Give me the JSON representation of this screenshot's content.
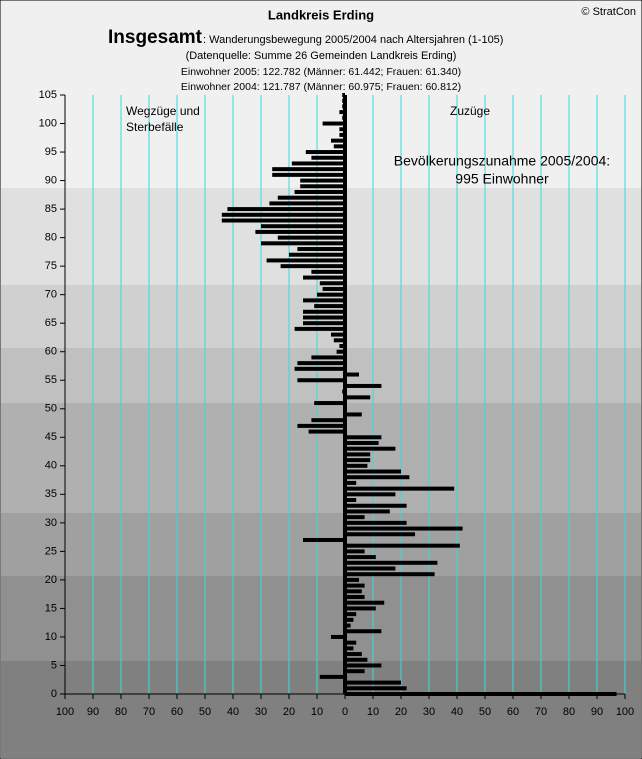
{
  "chart_data": {
    "type": "hbar",
    "title": "Landkreis Erding",
    "copyright": "© StratCon",
    "heading": "Insgesamt",
    "subtitle": ": Wanderungsbewegung 2005/2004 nach Altersjahren (1-105)",
    "source": "(Datenquelle: Summe 26 Gemeinden Landkreis Erding)",
    "info": [
      "Einwohner 2005: 122.782  (Männer: 61.442; Frauen: 61.340)",
      "Einwohner 2004: 121.787  (Männer: 60.975; Frauen: 60.812)"
    ],
    "left_label": [
      "Wegzüge und",
      "Sterbefälle"
    ],
    "left_color": "#ff0000",
    "right_label": "Zuzüge",
    "right_color": "#008000",
    "note": [
      "Bevölkerungszunahme 2005/2004:",
      "995 Einwohner"
    ],
    "color": "#000000",
    "grid_color": "#33dddd",
    "grid": true,
    "ages": [
      0,
      1,
      2,
      3,
      4,
      5,
      6,
      7,
      8,
      9,
      10,
      11,
      12,
      13,
      14,
      15,
      16,
      17,
      18,
      19,
      20,
      21,
      22,
      23,
      24,
      25,
      26,
      27,
      28,
      29,
      30,
      31,
      32,
      33,
      34,
      35,
      36,
      37,
      38,
      39,
      40,
      41,
      42,
      43,
      44,
      45,
      46,
      47,
      48,
      49,
      50,
      51,
      52,
      53,
      54,
      55,
      56,
      57,
      58,
      59,
      60,
      61,
      62,
      63,
      64,
      65,
      66,
      67,
      68,
      69,
      70,
      71,
      72,
      73,
      74,
      75,
      76,
      77,
      78,
      79,
      80,
      81,
      82,
      83,
      84,
      85,
      86,
      87,
      88,
      89,
      90,
      91,
      92,
      93,
      94,
      95,
      96,
      97,
      98,
      99,
      100,
      101,
      102,
      103,
      104,
      105
    ],
    "values": [
      97,
      22,
      20,
      -9,
      7,
      13,
      8,
      6,
      3,
      4,
      -5,
      13,
      2,
      3,
      4,
      11,
      14,
      7,
      6,
      7,
      5,
      32,
      18,
      33,
      11,
      7,
      41,
      -15,
      25,
      42,
      22,
      7,
      16,
      22,
      4,
      18,
      39,
      4,
      23,
      20,
      8,
      9,
      9,
      18,
      12,
      13,
      -13,
      -17,
      -12,
      6,
      0,
      -11,
      9,
      -1,
      13,
      -17,
      5,
      -18,
      -17,
      -12,
      -3,
      -2,
      -4,
      -5,
      -18,
      -15,
      -15,
      -15,
      -11,
      -15,
      -10,
      -8,
      -9,
      -15,
      -12,
      -23,
      -28,
      -20,
      -17,
      -30,
      -24,
      -32,
      -30,
      -44,
      -44,
      -42,
      -27,
      -24,
      -18,
      -16,
      -16,
      -26,
      -26,
      -19,
      -12,
      -14,
      -4,
      -5,
      -2,
      -2,
      -8,
      -1,
      -2,
      -1,
      -1,
      -1
    ],
    "xlim": [
      -100,
      100
    ],
    "xticks": [
      {
        "value": -100,
        "label": "100"
      },
      {
        "value": -90,
        "label": "90"
      },
      {
        "value": -80,
        "label": "80"
      },
      {
        "value": -70,
        "label": "70"
      },
      {
        "value": -60,
        "label": "60"
      },
      {
        "value": -50,
        "label": "50"
      },
      {
        "value": -40,
        "label": "40"
      },
      {
        "value": -30,
        "label": "30"
      },
      {
        "value": -20,
        "label": "20"
      },
      {
        "value": -10,
        "label": "10"
      },
      0,
      10,
      20,
      30,
      40,
      50,
      60,
      70,
      80,
      90,
      100
    ],
    "ylim": [
      0,
      105
    ],
    "yticks": [
      0,
      5,
      10,
      15,
      20,
      25,
      30,
      35,
      40,
      45,
      50,
      55,
      60,
      65,
      70,
      75,
      80,
      85,
      90,
      95,
      100,
      105
    ]
  }
}
